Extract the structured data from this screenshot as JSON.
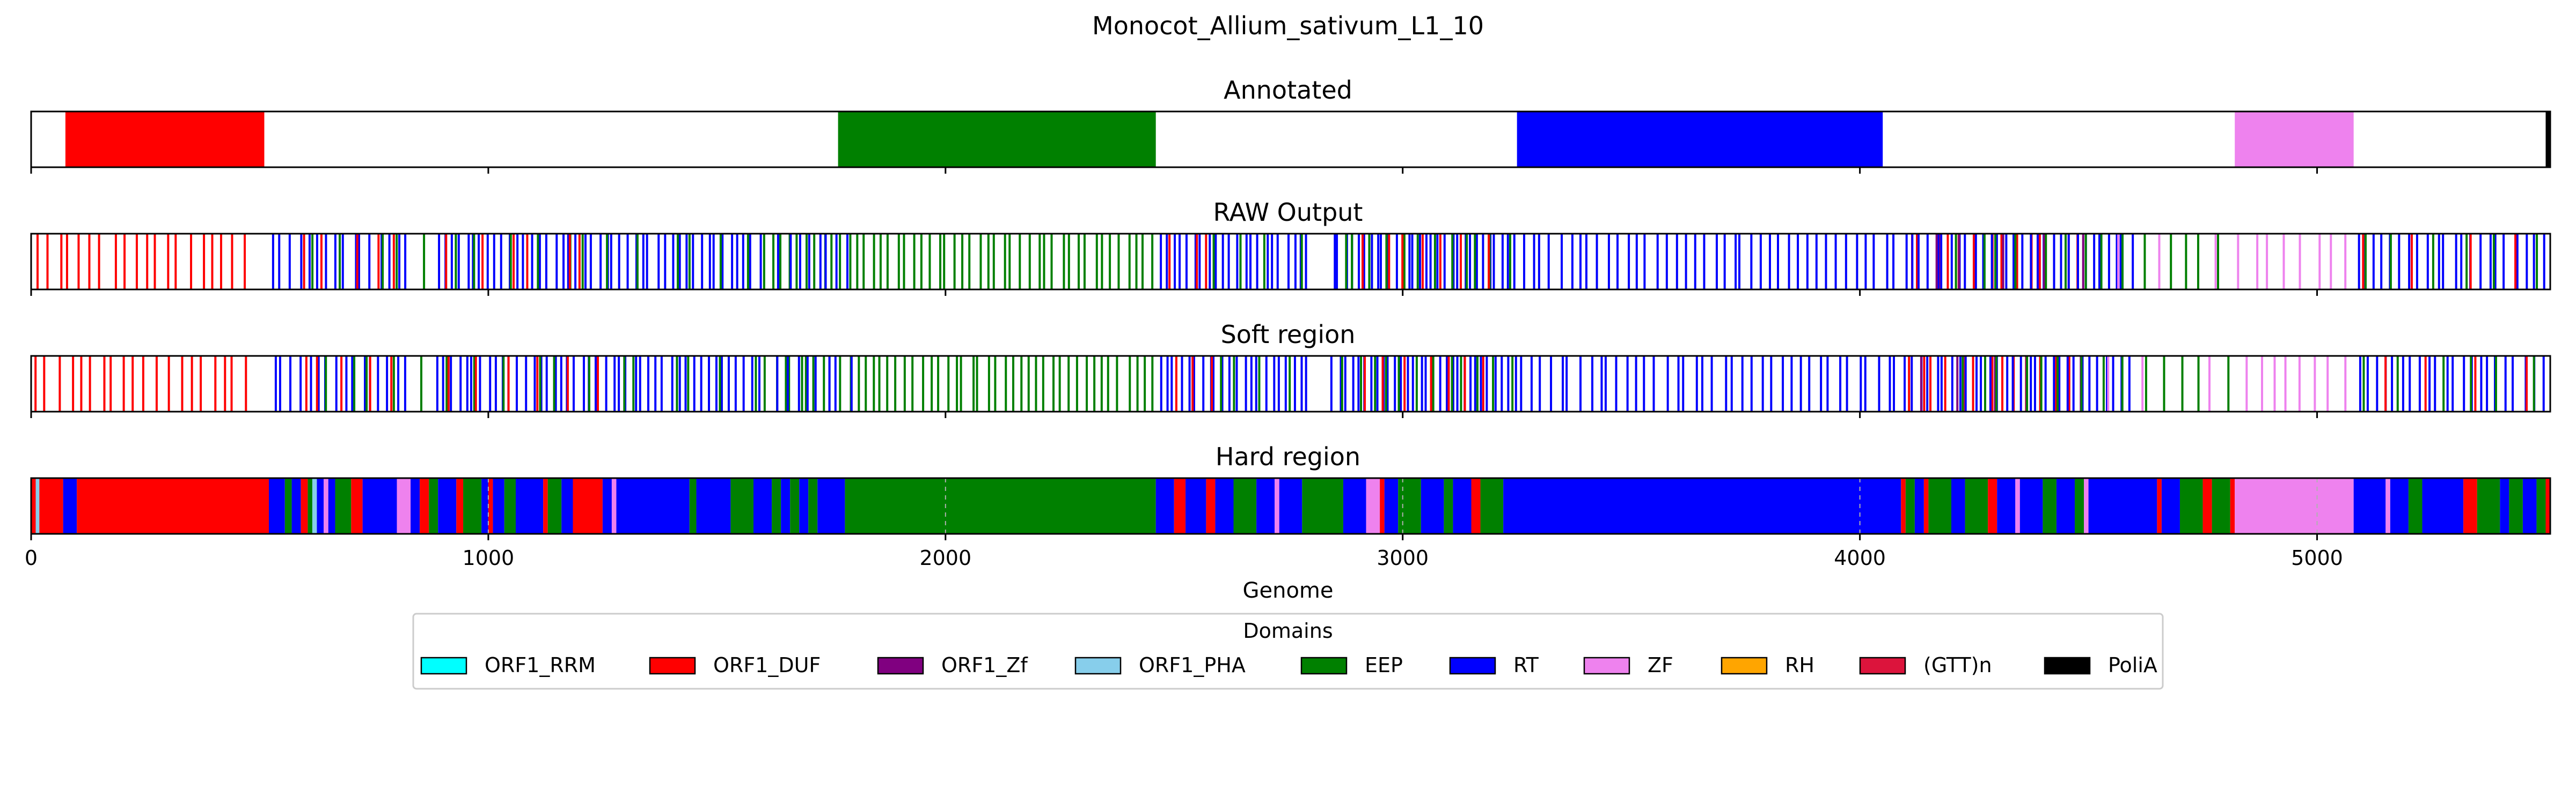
{
  "chart_data": {
    "type": "bar",
    "title": "Monocot_Allium_sativum_L1_10",
    "xlabel": "Genome",
    "xlim": [
      0,
      5510
    ],
    "xticks": [
      0,
      1000,
      2000,
      3000,
      4000,
      5000
    ],
    "xtick_labels": [
      "0",
      "1000",
      "2000",
      "3000",
      "4000",
      "5000"
    ],
    "legend": {
      "title": "Domains",
      "placement": "bottom-center",
      "entries": [
        {
          "name": "ORF1_RRM",
          "color": "#00ffff"
        },
        {
          "name": "ORF1_DUF",
          "color": "#ff0000"
        },
        {
          "name": "ORF1_Zf",
          "color": "#800080"
        },
        {
          "name": "ORF1_PHA",
          "color": "#87ceeb"
        },
        {
          "name": "EEP",
          "color": "#008000"
        },
        {
          "name": "RT",
          "color": "#0000ff"
        },
        {
          "name": "ZF",
          "color": "#ee82ee"
        },
        {
          "name": "RH",
          "color": "#ffa500"
        },
        {
          "name": "(GTT)n",
          "color": "#dc143c"
        },
        {
          "name": "PoliA",
          "color": "#000000"
        }
      ]
    },
    "panels": [
      {
        "title": "Annotated",
        "style": "blocks",
        "segments": [
          {
            "domain": "ORF1_DUF",
            "start": 75,
            "end": 510
          },
          {
            "domain": "EEP",
            "start": 1765,
            "end": 2460
          },
          {
            "domain": "RT",
            "start": 3250,
            "end": 4050
          },
          {
            "domain": "ZF",
            "start": 4820,
            "end": 5080
          },
          {
            "domain": "PoliA",
            "start": 5500,
            "end": 5510
          }
        ]
      },
      {
        "title": "RAW Output",
        "style": "lines",
        "segments": [
          {
            "domain": "ORF1_DUF",
            "start": 0,
            "end": 480,
            "count": 20
          },
          {
            "domain": "RT",
            "start": 520,
            "end": 830,
            "count": 16
          },
          {
            "domain": "ORF1_DUF",
            "start": 560,
            "end": 830,
            "count": 5
          },
          {
            "domain": "EEP",
            "start": 600,
            "end": 900,
            "count": 5
          },
          {
            "domain": "RT",
            "start": 880,
            "end": 1600,
            "count": 45
          },
          {
            "domain": "EEP",
            "start": 900,
            "end": 1600,
            "count": 12
          },
          {
            "domain": "ORF1_DUF",
            "start": 880,
            "end": 1250,
            "count": 6
          },
          {
            "domain": "EEP",
            "start": 1600,
            "end": 2460,
            "count": 48
          },
          {
            "domain": "RT",
            "start": 1620,
            "end": 1800,
            "count": 8
          },
          {
            "domain": "RT",
            "start": 2460,
            "end": 2800,
            "count": 22
          },
          {
            "domain": "ORF1_DUF",
            "start": 2480,
            "end": 2600,
            "count": 3
          },
          {
            "domain": "EEP",
            "start": 2550,
            "end": 2800,
            "count": 4
          },
          {
            "domain": "RT",
            "start": 2840,
            "end": 3250,
            "count": 30
          },
          {
            "domain": "EEP",
            "start": 2850,
            "end": 3250,
            "count": 12
          },
          {
            "domain": "ORF1_DUF",
            "start": 2900,
            "end": 3200,
            "count": 7
          },
          {
            "domain": "RT",
            "start": 3250,
            "end": 4090,
            "count": 40
          },
          {
            "domain": "ORF1_DUF",
            "start": 4090,
            "end": 4500,
            "count": 14
          },
          {
            "domain": "RT",
            "start": 4090,
            "end": 4600,
            "count": 30
          },
          {
            "domain": "ORF1_Zf",
            "start": 4120,
            "end": 4500,
            "count": 5
          },
          {
            "domain": "EEP",
            "start": 4200,
            "end": 4820,
            "count": 14
          },
          {
            "domain": "ZF",
            "start": 4500,
            "end": 4800,
            "count": 3
          },
          {
            "domain": "ZF",
            "start": 4820,
            "end": 5080,
            "count": 8
          },
          {
            "domain": "RT",
            "start": 5080,
            "end": 5500,
            "count": 22
          },
          {
            "domain": "EEP",
            "start": 5080,
            "end": 5500,
            "count": 6
          },
          {
            "domain": "ORF1_DUF",
            "start": 5080,
            "end": 5500,
            "count": 4
          }
        ]
      },
      {
        "title": "Soft region",
        "style": "lines",
        "segments": [
          {
            "domain": "ORF1_DUF",
            "start": 0,
            "end": 480,
            "count": 20
          },
          {
            "domain": "RT",
            "start": 520,
            "end": 830,
            "count": 16
          },
          {
            "domain": "ORF1_DUF",
            "start": 560,
            "end": 830,
            "count": 5
          },
          {
            "domain": "EEP",
            "start": 600,
            "end": 900,
            "count": 5
          },
          {
            "domain": "RT",
            "start": 880,
            "end": 1600,
            "count": 45
          },
          {
            "domain": "EEP",
            "start": 900,
            "end": 1600,
            "count": 12
          },
          {
            "domain": "ORF1_DUF",
            "start": 880,
            "end": 1250,
            "count": 6
          },
          {
            "domain": "EEP",
            "start": 1600,
            "end": 2460,
            "count": 48
          },
          {
            "domain": "RT",
            "start": 1620,
            "end": 1800,
            "count": 8
          },
          {
            "domain": "RT",
            "start": 2460,
            "end": 2800,
            "count": 22
          },
          {
            "domain": "ORF1_DUF",
            "start": 2480,
            "end": 2600,
            "count": 3
          },
          {
            "domain": "EEP",
            "start": 2550,
            "end": 2800,
            "count": 4
          },
          {
            "domain": "RT",
            "start": 2840,
            "end": 3250,
            "count": 30
          },
          {
            "domain": "EEP",
            "start": 2850,
            "end": 3250,
            "count": 12
          },
          {
            "domain": "ORF1_DUF",
            "start": 2900,
            "end": 3200,
            "count": 7
          },
          {
            "domain": "RT",
            "start": 3250,
            "end": 4090,
            "count": 40
          },
          {
            "domain": "ORF1_DUF",
            "start": 4090,
            "end": 4500,
            "count": 14
          },
          {
            "domain": "RT",
            "start": 4090,
            "end": 4600,
            "count": 30
          },
          {
            "domain": "ORF1_Zf",
            "start": 4120,
            "end": 4500,
            "count": 5
          },
          {
            "domain": "EEP",
            "start": 4200,
            "end": 4820,
            "count": 14
          },
          {
            "domain": "ZF",
            "start": 4500,
            "end": 4800,
            "count": 3
          },
          {
            "domain": "ZF",
            "start": 4820,
            "end": 5080,
            "count": 8
          },
          {
            "domain": "RT",
            "start": 5080,
            "end": 5500,
            "count": 22
          },
          {
            "domain": "EEP",
            "start": 5080,
            "end": 5500,
            "count": 6
          },
          {
            "domain": "ORF1_DUF",
            "start": 5080,
            "end": 5500,
            "count": 4
          }
        ]
      },
      {
        "title": "Hard region",
        "style": "blocks",
        "grid": true,
        "segments": [
          {
            "domain": "ORF1_DUF",
            "start": 0,
            "end": 10
          },
          {
            "domain": "ORF1_PHA",
            "start": 10,
            "end": 18
          },
          {
            "domain": "ORF1_DUF",
            "start": 18,
            "end": 70
          },
          {
            "domain": "RT",
            "start": 70,
            "end": 100
          },
          {
            "domain": "ORF1_DUF",
            "start": 100,
            "end": 520
          },
          {
            "domain": "RT",
            "start": 520,
            "end": 555
          },
          {
            "domain": "EEP",
            "start": 555,
            "end": 570
          },
          {
            "domain": "RT",
            "start": 570,
            "end": 590
          },
          {
            "domain": "ORF1_DUF",
            "start": 590,
            "end": 605
          },
          {
            "domain": "EEP",
            "start": 605,
            "end": 615
          },
          {
            "domain": "ORF1_PHA",
            "start": 615,
            "end": 625
          },
          {
            "domain": "RT",
            "start": 625,
            "end": 640
          },
          {
            "domain": "ZF",
            "start": 640,
            "end": 650
          },
          {
            "domain": "RT",
            "start": 650,
            "end": 665
          },
          {
            "domain": "EEP",
            "start": 665,
            "end": 700
          },
          {
            "domain": "ORF1_DUF",
            "start": 700,
            "end": 725
          },
          {
            "domain": "RT",
            "start": 725,
            "end": 800
          },
          {
            "domain": "ZF",
            "start": 800,
            "end": 830
          },
          {
            "domain": "RT",
            "start": 830,
            "end": 850
          },
          {
            "domain": "ORF1_DUF",
            "start": 850,
            "end": 870
          },
          {
            "domain": "EEP",
            "start": 870,
            "end": 890
          },
          {
            "domain": "RT",
            "start": 890,
            "end": 930
          },
          {
            "domain": "ORF1_DUF",
            "start": 930,
            "end": 945
          },
          {
            "domain": "EEP",
            "start": 945,
            "end": 985
          },
          {
            "domain": "RT",
            "start": 985,
            "end": 1000
          },
          {
            "domain": "ORF1_DUF",
            "start": 1000,
            "end": 1010
          },
          {
            "domain": "RT",
            "start": 1010,
            "end": 1035
          },
          {
            "domain": "EEP",
            "start": 1035,
            "end": 1060
          },
          {
            "domain": "RT",
            "start": 1060,
            "end": 1120
          },
          {
            "domain": "ORF1_DUF",
            "start": 1120,
            "end": 1130
          },
          {
            "domain": "EEP",
            "start": 1130,
            "end": 1160
          },
          {
            "domain": "RT",
            "start": 1160,
            "end": 1185
          },
          {
            "domain": "ORF1_DUF",
            "start": 1185,
            "end": 1250
          },
          {
            "domain": "RT",
            "start": 1250,
            "end": 1270
          },
          {
            "domain": "ZF",
            "start": 1270,
            "end": 1280
          },
          {
            "domain": "RT",
            "start": 1280,
            "end": 1440
          },
          {
            "domain": "EEP",
            "start": 1440,
            "end": 1455
          },
          {
            "domain": "RT",
            "start": 1455,
            "end": 1530
          },
          {
            "domain": "EEP",
            "start": 1530,
            "end": 1580
          },
          {
            "domain": "RT",
            "start": 1580,
            "end": 1620
          },
          {
            "domain": "EEP",
            "start": 1620,
            "end": 1640
          },
          {
            "domain": "RT",
            "start": 1640,
            "end": 1660
          },
          {
            "domain": "EEP",
            "start": 1660,
            "end": 1680
          },
          {
            "domain": "RT",
            "start": 1680,
            "end": 1700
          },
          {
            "domain": "EEP",
            "start": 1700,
            "end": 1720
          },
          {
            "domain": "RT",
            "start": 1720,
            "end": 1780
          },
          {
            "domain": "EEP",
            "start": 1780,
            "end": 2460
          },
          {
            "domain": "RT",
            "start": 2460,
            "end": 2500
          },
          {
            "domain": "ORF1_DUF",
            "start": 2500,
            "end": 2525
          },
          {
            "domain": "RT",
            "start": 2525,
            "end": 2570
          },
          {
            "domain": "ORF1_DUF",
            "start": 2570,
            "end": 2590
          },
          {
            "domain": "RT",
            "start": 2590,
            "end": 2630
          },
          {
            "domain": "EEP",
            "start": 2630,
            "end": 2680
          },
          {
            "domain": "RT",
            "start": 2680,
            "end": 2720
          },
          {
            "domain": "ZF",
            "start": 2720,
            "end": 2730
          },
          {
            "domain": "RT",
            "start": 2730,
            "end": 2780
          },
          {
            "domain": "EEP",
            "start": 2780,
            "end": 2870
          },
          {
            "domain": "RT",
            "start": 2870,
            "end": 2920
          },
          {
            "domain": "ZF",
            "start": 2920,
            "end": 2950
          },
          {
            "domain": "ORF1_DUF",
            "start": 2950,
            "end": 2960
          },
          {
            "domain": "RT",
            "start": 2960,
            "end": 2990
          },
          {
            "domain": "EEP",
            "start": 2990,
            "end": 3040
          },
          {
            "domain": "RT",
            "start": 3040,
            "end": 3090
          },
          {
            "domain": "EEP",
            "start": 3090,
            "end": 3110
          },
          {
            "domain": "RT",
            "start": 3110,
            "end": 3150
          },
          {
            "domain": "ORF1_DUF",
            "start": 3150,
            "end": 3170
          },
          {
            "domain": "EEP",
            "start": 3170,
            "end": 3220
          },
          {
            "domain": "RT",
            "start": 3220,
            "end": 4090
          },
          {
            "domain": "ORF1_DUF",
            "start": 4090,
            "end": 4100
          },
          {
            "domain": "EEP",
            "start": 4100,
            "end": 4120
          },
          {
            "domain": "RT",
            "start": 4120,
            "end": 4140
          },
          {
            "domain": "ORF1_DUF",
            "start": 4140,
            "end": 4150
          },
          {
            "domain": "EEP",
            "start": 4150,
            "end": 4200
          },
          {
            "domain": "RT",
            "start": 4200,
            "end": 4230
          },
          {
            "domain": "EEP",
            "start": 4230,
            "end": 4280
          },
          {
            "domain": "ORF1_DUF",
            "start": 4280,
            "end": 4300
          },
          {
            "domain": "RT",
            "start": 4300,
            "end": 4340
          },
          {
            "domain": "ZF",
            "start": 4340,
            "end": 4350
          },
          {
            "domain": "RT",
            "start": 4350,
            "end": 4400
          },
          {
            "domain": "EEP",
            "start": 4400,
            "end": 4430
          },
          {
            "domain": "RT",
            "start": 4430,
            "end": 4470
          },
          {
            "domain": "EEP",
            "start": 4470,
            "end": 4490
          },
          {
            "domain": "ZF",
            "start": 4490,
            "end": 4500
          },
          {
            "domain": "RT",
            "start": 4500,
            "end": 4650
          },
          {
            "domain": "ORF1_DUF",
            "start": 4650,
            "end": 4660
          },
          {
            "domain": "RT",
            "start": 4660,
            "end": 4700
          },
          {
            "domain": "EEP",
            "start": 4700,
            "end": 4750
          },
          {
            "domain": "ORF1_DUF",
            "start": 4750,
            "end": 4770
          },
          {
            "domain": "EEP",
            "start": 4770,
            "end": 4810
          },
          {
            "domain": "ORF1_DUF",
            "start": 4810,
            "end": 4820
          },
          {
            "domain": "ZF",
            "start": 4820,
            "end": 5080
          },
          {
            "domain": "RT",
            "start": 5080,
            "end": 5150
          },
          {
            "domain": "ZF",
            "start": 5150,
            "end": 5160
          },
          {
            "domain": "RT",
            "start": 5160,
            "end": 5200
          },
          {
            "domain": "EEP",
            "start": 5200,
            "end": 5230
          },
          {
            "domain": "RT",
            "start": 5230,
            "end": 5320
          },
          {
            "domain": "ORF1_DUF",
            "start": 5320,
            "end": 5350
          },
          {
            "domain": "EEP",
            "start": 5350,
            "end": 5400
          },
          {
            "domain": "RT",
            "start": 5400,
            "end": 5420
          },
          {
            "domain": "EEP",
            "start": 5420,
            "end": 5450
          },
          {
            "domain": "RT",
            "start": 5450,
            "end": 5480
          },
          {
            "domain": "EEP",
            "start": 5480,
            "end": 5500
          },
          {
            "domain": "ORF1_DUF",
            "start": 5500,
            "end": 5510
          }
        ]
      }
    ]
  }
}
